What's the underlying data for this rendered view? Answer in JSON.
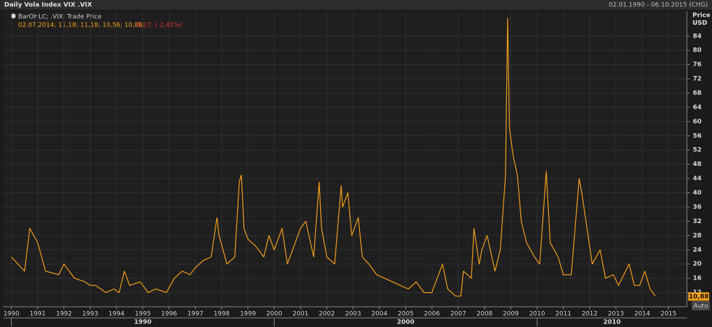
{
  "chart_data": {
    "type": "line",
    "title": "Daily Vola Index VIX .VIX",
    "date_range": "02.01.1990 - 06.10.2015 (CHG)",
    "legend_text": "BarOHLC; .VIX; Trade Price",
    "ohlc_text": "02.07.2014; 11,18; 11,18; 10,56; 10,88;",
    "change_text": "-0,27; (-2,42%)",
    "y_axis_label": "Price",
    "y_axis_unit": "USD",
    "auto_button": "Auto",
    "series": [
      {
        "name": ".VIX",
        "color": "#f7a11a",
        "x": [
          1990.0,
          1990.5,
          1990.7,
          1991.0,
          1991.3,
          1991.8,
          1992.0,
          1992.4,
          1992.8,
          1993.0,
          1993.2,
          1993.6,
          1993.9,
          1994.1,
          1994.3,
          1994.5,
          1994.9,
          1995.2,
          1995.5,
          1995.9,
          1996.2,
          1996.5,
          1996.8,
          1997.0,
          1997.3,
          1997.6,
          1997.82,
          1997.9,
          1998.2,
          1998.5,
          1998.67,
          1998.75,
          1998.85,
          1999.0,
          1999.3,
          1999.6,
          1999.8,
          2000.0,
          2000.3,
          2000.5,
          2000.8,
          2001.0,
          2001.2,
          2001.5,
          2001.71,
          2001.8,
          2002.0,
          2002.3,
          2002.55,
          2002.6,
          2002.8,
          2002.95,
          2003.2,
          2003.35,
          2003.6,
          2003.9,
          2004.2,
          2004.5,
          2004.8,
          2005.1,
          2005.4,
          2005.7,
          2006.0,
          2006.4,
          2006.6,
          2006.9,
          2007.1,
          2007.2,
          2007.5,
          2007.6,
          2007.8,
          2007.9,
          2008.1,
          2008.4,
          2008.6,
          2008.8,
          2008.88,
          2008.95,
          2009.1,
          2009.25,
          2009.4,
          2009.6,
          2009.9,
          2010.1,
          2010.35,
          2010.5,
          2010.8,
          2011.0,
          2011.3,
          2011.6,
          2011.7,
          2011.9,
          2012.1,
          2012.4,
          2012.6,
          2012.9,
          2013.1,
          2013.5,
          2013.7,
          2013.9,
          2014.1,
          2014.3,
          2014.5
        ],
        "values": [
          22,
          18,
          30,
          26,
          18,
          17,
          20,
          16,
          15,
          14,
          14,
          12,
          13,
          12,
          18,
          14,
          15,
          12,
          13,
          12,
          16,
          18,
          17,
          19,
          21,
          22,
          33,
          28,
          20,
          22,
          43,
          45,
          30,
          27,
          25,
          22,
          28,
          24,
          30,
          20,
          26,
          30,
          32,
          22,
          43,
          30,
          22,
          20,
          42,
          36,
          40,
          28,
          33,
          22,
          20,
          17,
          16,
          15,
          14,
          13,
          15,
          12,
          12,
          20,
          13,
          11,
          11,
          18,
          16,
          30,
          20,
          24,
          28,
          18,
          24,
          45,
          89,
          58,
          50,
          45,
          32,
          26,
          22,
          20,
          46,
          26,
          22,
          17,
          17,
          44,
          40,
          30,
          20,
          24,
          16,
          17,
          14,
          20,
          14,
          14,
          18,
          13,
          11
        ]
      }
    ],
    "last_value": {
      "value": 10.88,
      "label": "10,88"
    },
    "xlim": [
      1989.7,
      2015.7
    ],
    "xticks": [
      1990,
      1991,
      1992,
      1993,
      1994,
      1995,
      1996,
      1997,
      1998,
      1999,
      2000,
      2001,
      2002,
      2003,
      2004,
      2005,
      2006,
      2007,
      2008,
      2009,
      2010,
      2011,
      2012,
      2013,
      2014,
      2015
    ],
    "decade_labels": [
      1990,
      2000,
      2010
    ],
    "ylim": [
      8,
      91
    ],
    "yticks": [
      12,
      16,
      20,
      24,
      28,
      32,
      36,
      40,
      44,
      48,
      52,
      56,
      60,
      64,
      68,
      72,
      76,
      80,
      84
    ],
    "grid": true
  }
}
